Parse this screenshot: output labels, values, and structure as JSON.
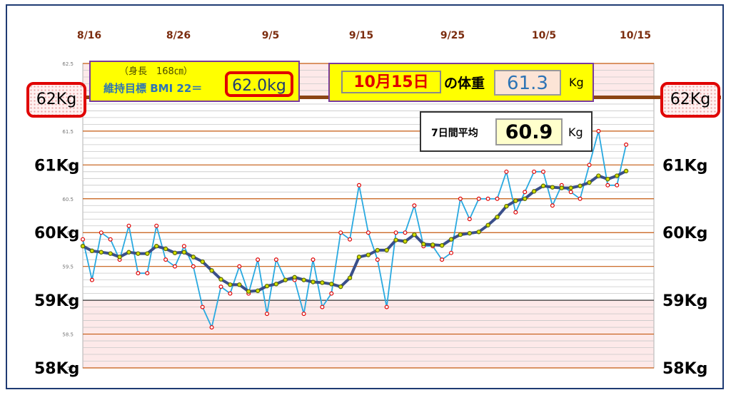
{
  "goal": {
    "height_text": "（身長　168㎝）",
    "label": "維持目標 BMI 22＝",
    "value": "62.0kg"
  },
  "today": {
    "date": "10月15日",
    "label": "の体重",
    "value": "61.3",
    "unit": "Kg"
  },
  "average": {
    "label": "7日間平均",
    "value": "60.9",
    "unit": "Kg"
  },
  "badges": {
    "left": "62Kg",
    "right": "62Kg"
  },
  "colors": {
    "weight_line": "#29a9e0",
    "weight_marker": "#e00000",
    "avg_line": "#3a4f8a",
    "avg_marker": "#d4e000",
    "band_fill": "#fde9e9",
    "major_grid": "#c55a11",
    "goal_line": "#8b4513"
  },
  "chart_data": {
    "type": "line",
    "x_tick_labels": [
      "8/16",
      "8/26",
      "9/5",
      "9/15",
      "9/25",
      "10/5",
      "10/15"
    ],
    "y_tick_labels_small": [
      "62.5",
      "62",
      "61.5",
      "61",
      "60.5",
      "60",
      "59.5",
      "59",
      "58.5",
      "58"
    ],
    "y_tick_labels_large": [
      "62Kg",
      "61Kg",
      "60Kg",
      "59Kg",
      "58Kg"
    ],
    "ylim": [
      58,
      62.5
    ],
    "goal_line_value": 62,
    "shaded_bands": [
      [
        62,
        62.5
      ],
      [
        58,
        59
      ]
    ],
    "series": [
      {
        "values": [
          59.9,
          59.3,
          60.0,
          59.9,
          59.6,
          60.1,
          59.4,
          59.4,
          60.1,
          59.6,
          59.5,
          59.8,
          59.5,
          58.9,
          58.6,
          59.2,
          59.1,
          59.5,
          59.1,
          59.6,
          58.8,
          59.6,
          59.3,
          59.3,
          58.8,
          59.6,
          58.9,
          59.1,
          60.0,
          59.9,
          60.7,
          60.0,
          59.6,
          58.9,
          60.0,
          60.0,
          60.4,
          59.8,
          59.8,
          59.6,
          59.7,
          60.5,
          60.2,
          60.5,
          60.5,
          60.5,
          60.9,
          60.3,
          60.6,
          60.9,
          60.9,
          60.4,
          60.7,
          60.6,
          60.5,
          61.0,
          61.5,
          60.7,
          60.7,
          61.3
        ]
      },
      {
        "values": [
          59.8,
          59.73,
          59.71,
          59.69,
          59.64,
          59.71,
          59.69,
          59.69,
          59.8,
          59.76,
          59.7,
          59.71,
          59.64,
          59.57,
          59.44,
          59.31,
          59.23,
          59.23,
          59.13,
          59.14,
          59.21,
          59.24,
          59.3,
          59.34,
          59.3,
          59.27,
          59.26,
          59.24,
          59.2,
          59.33,
          59.64,
          59.67,
          59.74,
          59.74,
          59.89,
          59.87,
          59.97,
          59.83,
          59.82,
          59.81,
          59.9,
          59.97,
          59.99,
          60.01,
          60.11,
          60.23,
          60.39,
          60.47,
          60.5,
          60.61,
          60.69,
          60.67,
          60.66,
          60.66,
          60.69,
          60.74,
          60.84,
          60.79,
          60.84,
          60.91
        ]
      }
    ]
  }
}
